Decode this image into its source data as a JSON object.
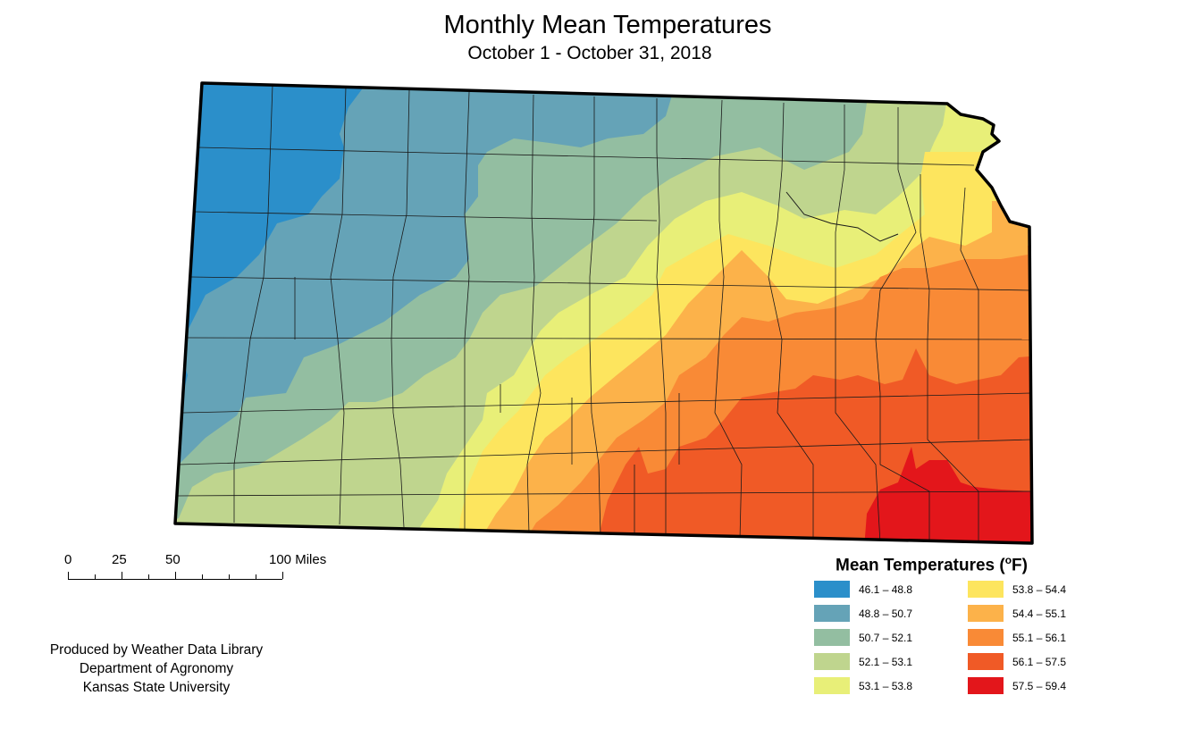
{
  "title": "Monthly Mean Temperatures",
  "subtitle": "October 1 - October 31, 2018",
  "scale": {
    "labels": [
      "0",
      "25",
      "50",
      "100 Miles"
    ]
  },
  "credits": [
    "Produced by Weather Data Library",
    "Department of Agronomy",
    "Kansas State University"
  ],
  "legend": {
    "title_main": "Mean Temperatures (",
    "title_sup": "o",
    "title_unit": "F)",
    "classes": [
      {
        "range": "46.1 – 48.8",
        "color": "#2b8fca"
      },
      {
        "range": "48.8 – 50.7",
        "color": "#65a3b7"
      },
      {
        "range": "50.7 – 52.1",
        "color": "#93bea1"
      },
      {
        "range": "52.1 – 53.1",
        "color": "#bfd58e"
      },
      {
        "range": "53.1 – 53.8",
        "color": "#e8ef78"
      },
      {
        "range": "53.8 – 54.4",
        "color": "#fde55e"
      },
      {
        "range": "54.4 – 55.1",
        "color": "#fcb24a"
      },
      {
        "range": "55.1 – 56.1",
        "color": "#f98a36"
      },
      {
        "range": "56.1 – 57.5",
        "color": "#f05a26"
      },
      {
        "range": "57.5 – 59.4",
        "color": "#e3161b"
      }
    ]
  }
}
